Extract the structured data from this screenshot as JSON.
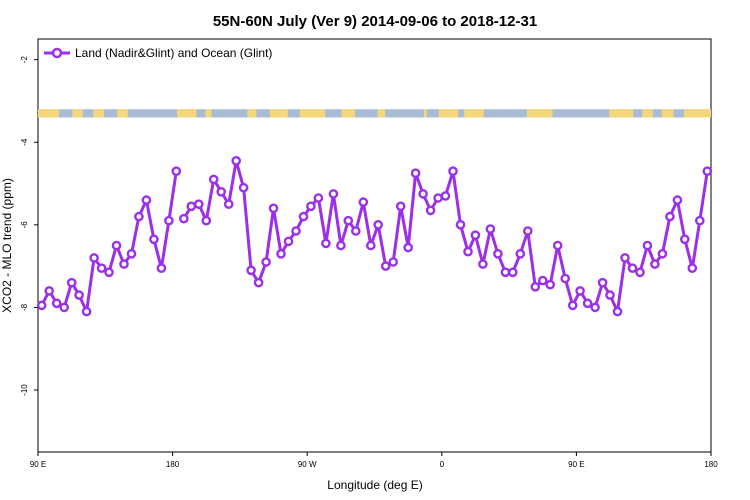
{
  "chart_data": {
    "type": "line",
    "title": "55N-60N July (Ver 9)   2014-09-06 to 2018-12-31",
    "xlabel": "Longitude (deg E)",
    "ylabel": "XCO2 - MLO trend (ppm)",
    "x_ticks": [
      {
        "value": 90,
        "label": "90 E"
      },
      {
        "value": 180,
        "label": "180"
      },
      {
        "value": 270,
        "label": "90 W"
      },
      {
        "value": 360,
        "label": "0"
      },
      {
        "value": 450,
        "label": "90 E"
      },
      {
        "value": 540,
        "label": "180"
      }
    ],
    "y_ticks": [
      {
        "value": -2,
        "label": "-2"
      },
      {
        "value": -4,
        "label": "-4"
      },
      {
        "value": -6,
        "label": "-6"
      },
      {
        "value": -8,
        "label": "-8"
      },
      {
        "value": -10,
        "label": "-10"
      }
    ],
    "xlim": [
      90,
      540
    ],
    "ylim": [
      -11.5,
      -1.5
    ],
    "colors": {
      "series": "#9b30e8",
      "land_band": "#f5d77a",
      "ocean_band": "#a9bcd6"
    },
    "land_ocean_band_y": [
      -3.2,
      -3.4
    ],
    "legend_position": "top-left",
    "grid": false,
    "series": [
      {
        "name": "Land (Nadir&Glint) and Ocean (Glint)",
        "segments": [
          {
            "x": [
              92.5,
              97.5,
              102.5,
              107.5,
              112.5,
              117.5,
              122.5,
              127.5,
              132.5,
              137.5,
              142.5,
              147.5,
              152.5,
              157.5,
              162.5,
              167.5,
              172.5,
              177.5,
              182.5
            ],
            "y": [
              -7.95,
              -7.6,
              -7.9,
              -8.0,
              -7.4,
              -7.7,
              -8.1,
              -6.8,
              -7.05,
              -7.15,
              -6.5,
              -6.95,
              -6.7,
              -5.8,
              -5.4,
              -6.35,
              -7.05,
              -5.9,
              -4.7
            ]
          },
          {
            "x": [
              187.5,
              192.5,
              197.5,
              202.5,
              207.5,
              212.5,
              217.5,
              222.5,
              227.5,
              232.5,
              237.5,
              242.5,
              247.5,
              252.5,
              257.5,
              262.5,
              267.5,
              272.5,
              277.5,
              282.5,
              287.5,
              292.5,
              297.5,
              302.5,
              307.5,
              312.5,
              317.5,
              322.5,
              327.5,
              332.5,
              337.5,
              342.5,
              347.5,
              352.5,
              357.5,
              362.5,
              367.5,
              372.5,
              377.5,
              382.5,
              387.5,
              392.5,
              397.5,
              402.5,
              407.5,
              412.5,
              417.5,
              422.5,
              427.5,
              432.5,
              437.5,
              442.5,
              447.5,
              452.5,
              457.5,
              462.5,
              467.5,
              472.5,
              477.5,
              482.5,
              487.5,
              492.5,
              497.5,
              502.5,
              507.5,
              512.5,
              517.5,
              522.5,
              527.5,
              532.5,
              537.5
            ],
            "y": [
              -5.85,
              -5.55,
              -5.5,
              -5.9,
              -4.9,
              -5.2,
              -5.5,
              -4.45,
              -5.1,
              -7.1,
              -7.4,
              -6.9,
              -5.6,
              -6.7,
              -6.4,
              -6.15,
              -5.8,
              -5.55,
              -5.35,
              -6.45,
              -5.25,
              -6.5,
              -5.9,
              -6.15,
              -5.45,
              -6.5,
              -6.0,
              -7.0,
              -6.9,
              -5.55,
              -6.55,
              -4.75,
              -5.25,
              -5.65,
              -5.35,
              -5.3,
              -4.7,
              -6.0,
              -6.65,
              -6.25,
              -6.95,
              -6.1,
              -6.7,
              -7.15,
              -7.15,
              -6.7,
              -6.15,
              -7.5,
              -7.35,
              -7.45,
              -6.5,
              -7.3,
              -7.95,
              -7.6,
              -7.9,
              -8.0,
              -7.4,
              -7.7,
              -8.1,
              -6.8,
              -7.05,
              -7.15,
              -6.5,
              -6.95,
              -6.7,
              -5.8,
              -5.4,
              -6.35,
              -7.05,
              -5.9,
              -4.7
            ]
          }
        ]
      }
    ]
  }
}
